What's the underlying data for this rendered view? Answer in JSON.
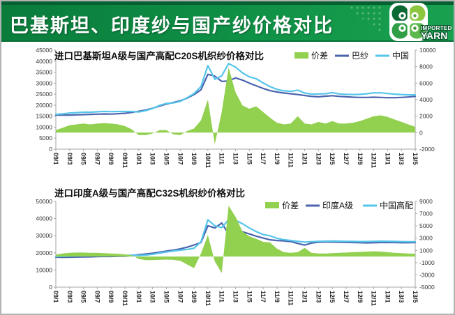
{
  "header": {
    "title": "巴基斯坦、印度纱与国产纱价格对比",
    "logo_line1": "IMPORTED",
    "logo_line2": "YARN"
  },
  "colors": {
    "header_green_dark": "#066031",
    "header_green": "#0f9146",
    "spread_area_green": "#92D050",
    "dark_blue_line": "#4A64AE",
    "light_blue_line": "#55C5EA"
  },
  "chart_data": [
    {
      "type": "combo-area-line",
      "title": "进口巴基斯坦A级与国产高配C20S机织纱价格对比",
      "x_unit": "month, 2009/1 - 2013/5, every 2nd month labeled",
      "x_tick_labels": [
        "09/1",
        "09/3",
        "09/5",
        "09/7",
        "09/9",
        "09/11",
        "10/1",
        "10/3",
        "10/5",
        "10/7",
        "10/9",
        "10/11",
        "11/1",
        "11/3",
        "11/5",
        "11/7",
        "11/9",
        "11/11",
        "12/1",
        "12/3",
        "12/5",
        "12/7",
        "12/9",
        "12/11",
        "13/1",
        "13/3",
        "13/5"
      ],
      "left_axis": {
        "min": 0,
        "max": 45000,
        "step": 5000
      },
      "right_axis": {
        "min": -2000,
        "max": 10000,
        "step": 2000
      },
      "legend": [
        {
          "label": "价差",
          "swatch": "area"
        },
        {
          "label": "巴纱",
          "swatch": "line"
        },
        {
          "label": "中国",
          "swatch": "line"
        }
      ],
      "series": [
        {
          "id": "price-gap-area",
          "name": "价差",
          "type": "area",
          "axis": "right",
          "color": "#92D050",
          "values": [
            300,
            600,
            900,
            1000,
            1100,
            1000,
            1100,
            1150,
            1100,
            1000,
            800,
            400,
            -300,
            -300,
            -100,
            300,
            300,
            -200,
            -300,
            200,
            500,
            1500,
            4000,
            -1400,
            2500,
            7900,
            4900,
            3300,
            2900,
            3200,
            2500,
            1800,
            1200,
            1000,
            1100,
            2000,
            1100,
            1000,
            1300,
            1100,
            1400,
            1100,
            1100,
            1200,
            1400,
            1700,
            2000,
            2100,
            1900,
            1600,
            1300,
            1000,
            700
          ]
        },
        {
          "id": "pakistan-yarn-line",
          "name": "巴纱",
          "type": "line",
          "axis": "left",
          "color": "#4A64AE",
          "values": [
            15500,
            15450,
            15500,
            15600,
            15700,
            15800,
            15900,
            16000,
            15950,
            16100,
            16300,
            16700,
            17200,
            17800,
            18600,
            19600,
            20500,
            21200,
            22000,
            23200,
            24800,
            27000,
            34000,
            33200,
            30800,
            31000,
            32400,
            31400,
            30000,
            28800,
            27600,
            26600,
            26000,
            25500,
            25200,
            24800,
            24400,
            24000,
            23800,
            24100,
            24300,
            24000,
            23800,
            23600,
            23500,
            23500,
            23600,
            23500,
            23400,
            23400,
            23500,
            23700,
            24000
          ]
        },
        {
          "id": "china-yarn-line",
          "name": "中国",
          "type": "line",
          "axis": "left",
          "color": "#55C5EA",
          "values": [
            15800,
            16050,
            16400,
            16600,
            16800,
            16800,
            17000,
            17150,
            17050,
            17100,
            17100,
            17100,
            16900,
            17500,
            18500,
            19900,
            20800,
            21000,
            21700,
            23400,
            25300,
            28500,
            38000,
            31800,
            33300,
            38900,
            37300,
            34700,
            32900,
            32000,
            30100,
            28400,
            27200,
            26500,
            26300,
            26800,
            25500,
            25000,
            25100,
            25200,
            25700,
            25100,
            24900,
            24800,
            24900,
            25200,
            25600,
            25600,
            25300,
            25000,
            24800,
            24700,
            24700
          ]
        }
      ]
    },
    {
      "type": "combo-area-line",
      "title": "进口印度A级与国产高配C32S机织纱价格对比",
      "x_unit": "month, 2009/1 - 2013/5, every 2nd month labeled",
      "x_tick_labels": [
        "09/1",
        "09/3",
        "09/5",
        "09/7",
        "09/9",
        "09/11",
        "10/1",
        "10/3",
        "10/5",
        "10/7",
        "10/9",
        "10/11",
        "11/1",
        "11/3",
        "11/5",
        "11/7",
        "11/9",
        "11/11",
        "12/1",
        "12/3",
        "12/5",
        "12/7",
        "12/9",
        "12/11",
        "13/1",
        "13/3",
        "13/5"
      ],
      "left_axis": {
        "min": 0,
        "max": 50000,
        "step": 10000
      },
      "right_axis": {
        "min": -5000,
        "max": 9000,
        "step": 2000
      },
      "legend": [
        {
          "label": "价差",
          "swatch": "area"
        },
        {
          "label": "印度A级",
          "swatch": "line"
        },
        {
          "label": "中国高配",
          "swatch": "line"
        }
      ],
      "series": [
        {
          "id": "price-gap-area",
          "name": "价差",
          "type": "area",
          "axis": "right",
          "color": "#92D050",
          "values": [
            300,
            500,
            600,
            650,
            650,
            600,
            600,
            550,
            500,
            450,
            350,
            200,
            -400,
            -600,
            -600,
            -550,
            -500,
            -550,
            -700,
            -1300,
            -1900,
            500,
            3500,
            -800,
            -2700,
            8300,
            6500,
            4100,
            3300,
            2900,
            2400,
            2300,
            1300,
            700,
            600,
            700,
            1400,
            600,
            500,
            500,
            550,
            600,
            650,
            700,
            750,
            800,
            850,
            800,
            700,
            600,
            550,
            500,
            450
          ]
        },
        {
          "id": "india-a-line",
          "name": "印度A级",
          "type": "line",
          "axis": "left",
          "color": "#4A64AE",
          "values": [
            17500,
            17450,
            17500,
            17550,
            17600,
            17700,
            17800,
            17900,
            17900,
            18000,
            18100,
            18400,
            18900,
            19300,
            19800,
            20400,
            21000,
            21600,
            22300,
            23300,
            24600,
            26000,
            35800,
            34500,
            37400,
            31000,
            30500,
            32300,
            31000,
            29700,
            28600,
            27600,
            27200,
            27000,
            26600,
            25500,
            24500,
            25700,
            26200,
            26300,
            26300,
            26200,
            26100,
            26000,
            25900,
            25800,
            25900,
            26000,
            26000,
            26000,
            25900,
            25900,
            26000
          ]
        },
        {
          "id": "china-premium-line",
          "name": "中国高配",
          "type": "line",
          "axis": "left",
          "color": "#55C5EA",
          "values": [
            17800,
            17950,
            18100,
            18200,
            18250,
            18300,
            18400,
            18450,
            18400,
            18450,
            18450,
            18600,
            18500,
            18700,
            19200,
            19850,
            20500,
            21050,
            21600,
            22000,
            22700,
            26500,
            39300,
            35800,
            34700,
            39300,
            39000,
            37000,
            34500,
            32400,
            30700,
            29900,
            28500,
            27700,
            27200,
            26700,
            26300,
            26500,
            26700,
            26800,
            26900,
            26800,
            26700,
            26650,
            26600,
            26600,
            26700,
            26800,
            26750,
            26650,
            26550,
            26450,
            26500
          ]
        }
      ]
    }
  ]
}
